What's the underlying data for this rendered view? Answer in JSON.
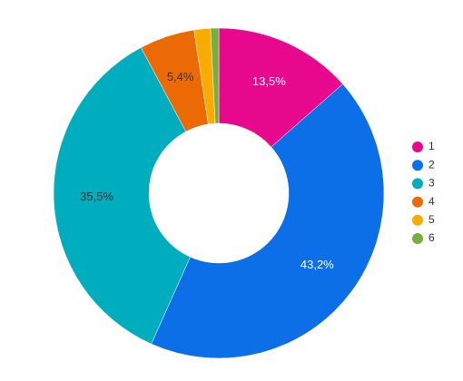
{
  "chart_data": {
    "type": "donut",
    "categories": [
      "1",
      "2",
      "3",
      "4",
      "5",
      "6"
    ],
    "values": [
      13.5,
      43.2,
      35.5,
      5.4,
      1.6,
      0.8
    ],
    "value_labels": [
      "13,5%",
      "43,2%",
      "35,5%",
      "5,4%",
      null,
      null
    ],
    "colors": [
      "#e8088e",
      "#0d6fe8",
      "#00adbf",
      "#ec6a05",
      "#f9ab00",
      "#76ae3f"
    ],
    "legend": "right"
  }
}
